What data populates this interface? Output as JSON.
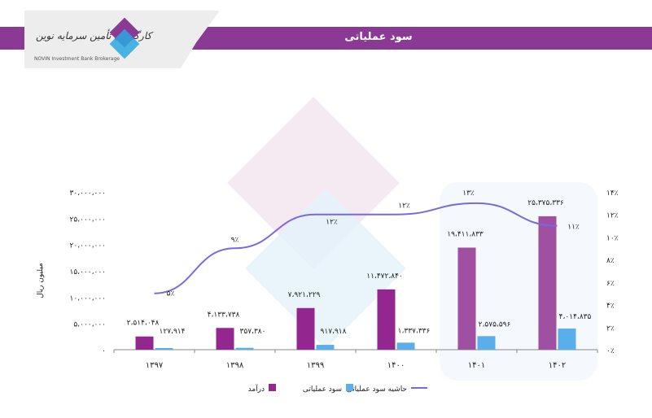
{
  "header": {
    "title": "سود عملیاتی",
    "logo_text": "کارگزاری تأمین سرمایه نوین",
    "logo_sub": "NOVIN Investment Bank Brokerage"
  },
  "colors": {
    "revenue": "#93278f",
    "profit": "#5aaeea",
    "margin": "#7b68e0",
    "band": "#8a3a94"
  },
  "chart_data": {
    "type": "bar+line",
    "categories": [
      "۱۳۹۷",
      "۱۳۹۸",
      "۱۳۹۹",
      "۱۴۰۰",
      "۱۴۰۱",
      "۱۴۰۲"
    ],
    "ylabel": "میلیون ریال",
    "ylim": [
      0,
      30000000
    ],
    "y2lim": [
      0,
      14
    ],
    "y_ticks": [
      "۰",
      "۵،۰۰۰،۰۰۰",
      "۱۰،۰۰۰،۰۰۰",
      "۱۵،۰۰۰،۰۰۰",
      "۲۰،۰۰۰،۰۰۰",
      "۲۵،۰۰۰،۰۰۰",
      "۳۰،۰۰۰،۰۰۰"
    ],
    "y2_ticks": [
      "۰٪",
      "۲٪",
      "۴٪",
      "۶٪",
      "۸٪",
      "۱۰٪",
      "۱۲٪",
      "۱۴٪"
    ],
    "series": [
      {
        "name": "درآمد",
        "type": "bar",
        "values": [
          2514048,
          4133738,
          7921229,
          11472840,
          19411833,
          25375336
        ],
        "labels": [
          "۲،۵۱۴،۰۴۸",
          "۴،۱۳۳،۷۳۸",
          "۷،۹۲۱،۲۲۹",
          "۱۱،۴۷۲،۸۴۰",
          "۱۹،۴۱۱،۸۳۳",
          "۲۵،۳۷۵،۳۳۶"
        ]
      },
      {
        "name": "سود عملیاتی",
        "type": "bar",
        "values": [
          127914,
          357380,
          917918,
          1337336,
          2575596,
          4014835
        ],
        "labels": [
          "۱۲۷،۹۱۴",
          "۳۵۷،۳۸۰",
          "۹۱۷،۹۱۸",
          "۱،۳۳۷،۳۳۶",
          "۲،۵۷۵،۵۹۶",
          "۴،۰۱۴،۸۳۵"
        ]
      },
      {
        "name": "حاشیه سود عملیاتی",
        "type": "line",
        "axis": "right",
        "values": [
          5,
          9,
          12,
          12,
          13,
          11
        ],
        "labels": [
          "۵٪",
          "۹٪",
          "۱۲٪",
          "۱۲٪",
          "۱۳٪",
          "۱۱٪"
        ]
      }
    ],
    "legend": "bottom"
  }
}
